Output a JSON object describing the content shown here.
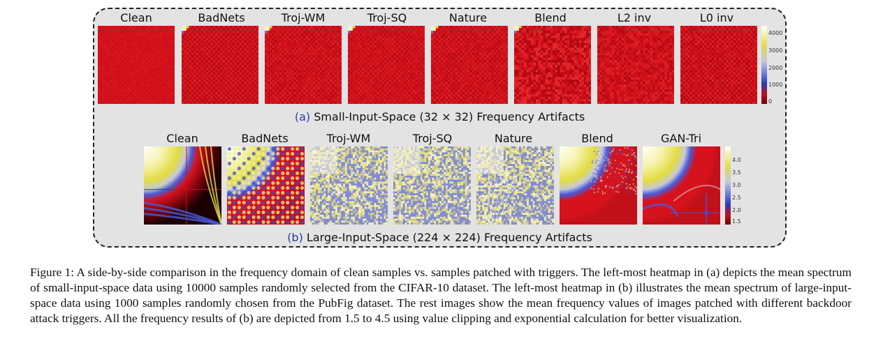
{
  "panel_a": {
    "labels": [
      "Clean",
      "BadNets",
      "Troj-WM",
      "Troj-SQ",
      "Nature",
      "Blend",
      "L2 inv",
      "L0 inv"
    ],
    "caption_tag": "(a)",
    "caption_text": "Small-Input-Space (32 × 32) Frequency Artifacts",
    "colorbar_ticks": [
      "4000",
      "3000",
      "2000",
      "1000",
      "0"
    ]
  },
  "panel_b": {
    "labels": [
      "Clean",
      "BadNets",
      "Troj-WM",
      "Troj-SQ",
      "Nature",
      "Blend",
      "GAN-Tri"
    ],
    "caption_tag": "(b)",
    "caption_text": "Large-Input-Space (224 × 224) Frequency Artifacts",
    "colorbar_ticks": [
      "4.0",
      "3.5",
      "3.0",
      "2.5",
      "2.0",
      "1.5"
    ]
  },
  "figure_caption": "Figure 1: A side-by-side comparison in the frequency domain of clean samples vs. samples patched with triggers. The left-most heatmap in (a) depicts the mean spectrum of small-input-space data using 10000 samples randomly selected from the CIFAR-10 dataset. The left-most heatmap in (b) illustrates the mean spectrum of large-input-space data using 1000 samples randomly chosen from the PubFig dataset. The rest images show the mean frequency values of images patched with different backdoor attack triggers. All the frequency results of (b) are depicted from 1.5 to 4.5 using value clipping and exponential calculation for better visualization.",
  "colors": {
    "red": "#d6121c",
    "yellow": "#e6e04a",
    "blue": "#3a4fd0",
    "dark": "#2a0006"
  }
}
